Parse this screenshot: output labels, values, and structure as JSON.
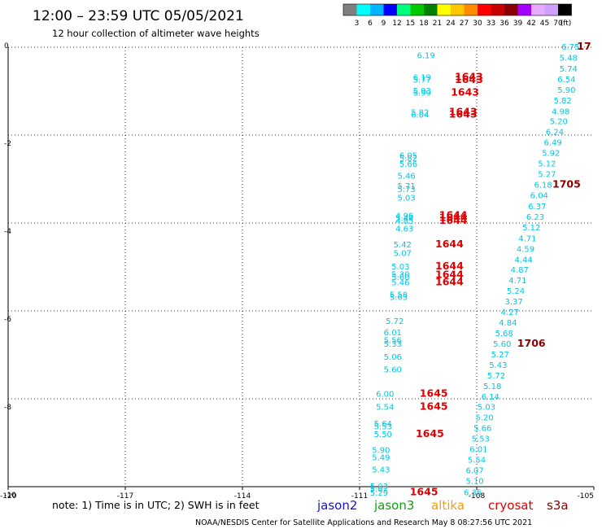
{
  "title": "12:00 – 23:59 UTC 05/05/2021",
  "subtitle": "12 hour collection of altimeter wave heights",
  "note": "note: 1) Time is in UTC; 2) SWH is in feet",
  "credit": "NOAA/NESDIS Center for Satellite Applications and Research   May  8 08:27:56 UTC 2021",
  "satellites": [
    {
      "name": "jason2",
      "color": "#1414d2"
    },
    {
      "name": "jason3",
      "color": "#14a014"
    },
    {
      "name": "altika",
      "color": "#ff9a00"
    },
    {
      "name": "cryosat",
      "color": "#e00000"
    },
    {
      "name": "s3a",
      "color": "#8b0000"
    }
  ],
  "chart_data": {
    "type": "scatter",
    "title": "12:00 – 23:59 UTC 05/05/2021",
    "subtitle": "12 hour collection of altimeter wave heights",
    "xlim": [
      -120,
      -105
    ],
    "ylim": [
      -10,
      0
    ],
    "x_ticks": [
      -120,
      -117,
      -114,
      -111,
      -108,
      -105
    ],
    "y_ticks": [
      0,
      -2,
      -4,
      -6,
      -8,
      -10
    ],
    "grid": true,
    "color_scale": {
      "unit": "(ft)",
      "labels": [
        "3",
        "6",
        "9",
        "12",
        "15",
        "18",
        "21",
        "24",
        "27",
        "30",
        "33",
        "36",
        "39",
        "42",
        "45",
        "70"
      ],
      "colors": [
        "#7f7f7f",
        "#00ffff",
        "#00b4ff",
        "#0000ff",
        "#00ff7f",
        "#00c800",
        "#008000",
        "#ffff00",
        "#ffc800",
        "#ff8c00",
        "#ff0000",
        "#c80000",
        "#8b0000",
        "#a000ff",
        "#e6aaff",
        "#d0a0ff",
        "#000000"
      ]
    },
    "swh_series": [
      {
        "name": "track-1",
        "color": "#00c8e6",
        "points": [
          {
            "x": -109.3,
            "y": -0.18,
            "v": "6.19"
          },
          {
            "x": -109.4,
            "y": -0.68,
            "v": "6.19"
          },
          {
            "x": -109.4,
            "y": -0.73,
            "v": "5.77"
          },
          {
            "x": -109.4,
            "y": -0.98,
            "v": "5.93"
          },
          {
            "x": -109.4,
            "y": -1.03,
            "v": "5.99"
          },
          {
            "x": -109.45,
            "y": -1.47,
            "v": "5.82"
          },
          {
            "x": -109.45,
            "y": -1.53,
            "v": "6.04"
          },
          {
            "x": -109.75,
            "y": -2.45,
            "v": "6.05"
          },
          {
            "x": -109.75,
            "y": -2.52,
            "v": "5.82"
          },
          {
            "x": -109.75,
            "y": -2.65,
            "v": "5.66"
          },
          {
            "x": -109.8,
            "y": -2.92,
            "v": "5.46"
          },
          {
            "x": -109.8,
            "y": -3.15,
            "v": "5.71"
          },
          {
            "x": -109.8,
            "y": -3.22,
            "v": "5.73"
          },
          {
            "x": -109.8,
            "y": -3.42,
            "v": "5.03"
          },
          {
            "x": -109.85,
            "y": -3.82,
            "v": "4.96"
          },
          {
            "x": -109.85,
            "y": -3.88,
            "v": "5.44"
          },
          {
            "x": -109.85,
            "y": -3.94,
            "v": "4.85"
          },
          {
            "x": -109.85,
            "y": -4.12,
            "v": "4.63"
          },
          {
            "x": -109.9,
            "y": -4.48,
            "v": "5.42"
          },
          {
            "x": -109.9,
            "y": -4.68,
            "v": "5.07"
          },
          {
            "x": -109.95,
            "y": -4.98,
            "v": "5.03"
          },
          {
            "x": -109.95,
            "y": -5.16,
            "v": "5.30"
          },
          {
            "x": -109.95,
            "y": -5.22,
            "v": "5.60"
          },
          {
            "x": -109.95,
            "y": -5.34,
            "v": "5.46"
          },
          {
            "x": -110.0,
            "y": -5.62,
            "v": "5.58"
          },
          {
            "x": -110.0,
            "y": -5.68,
            "v": "5.63"
          },
          {
            "x": -110.1,
            "y": -6.22,
            "v": "5.72"
          },
          {
            "x": -110.15,
            "y": -6.48,
            "v": "6.01"
          },
          {
            "x": -110.15,
            "y": -6.66,
            "v": "5.56"
          },
          {
            "x": -110.15,
            "y": -6.74,
            "v": "5.33"
          },
          {
            "x": -110.15,
            "y": -7.04,
            "v": "5.06"
          },
          {
            "x": -110.15,
            "y": -7.32,
            "v": "5.60"
          },
          {
            "x": -110.35,
            "y": -7.88,
            "v": "6.00"
          },
          {
            "x": -110.35,
            "y": -8.18,
            "v": "5.54"
          },
          {
            "x": -110.4,
            "y": -8.56,
            "v": "5.64"
          },
          {
            "x": -110.4,
            "y": -8.62,
            "v": "5.53"
          },
          {
            "x": -110.4,
            "y": -8.8,
            "v": "5.50"
          },
          {
            "x": -110.45,
            "y": -9.16,
            "v": "5.90"
          },
          {
            "x": -110.45,
            "y": -9.32,
            "v": "5.49"
          },
          {
            "x": -110.45,
            "y": -9.6,
            "v": "5.43"
          },
          {
            "x": -110.5,
            "y": -9.98,
            "v": "5.03"
          },
          {
            "x": -110.5,
            "y": -10.04,
            "v": "5.02"
          },
          {
            "x": -110.5,
            "y": -10.13,
            "v": "5.29"
          }
        ]
      },
      {
        "name": "track-2",
        "color": "#00c8e6",
        "points": [
          {
            "x": -105.6,
            "y": 0.02,
            "v": "6.75"
          },
          {
            "x": -105.65,
            "y": -0.23,
            "v": "5.48"
          },
          {
            "x": -105.65,
            "y": -0.48,
            "v": "5.74"
          },
          {
            "x": -105.7,
            "y": -0.72,
            "v": "6.54"
          },
          {
            "x": -105.7,
            "y": -0.96,
            "v": "5.90"
          },
          {
            "x": -105.8,
            "y": -1.2,
            "v": "5.82"
          },
          {
            "x": -105.85,
            "y": -1.45,
            "v": "4.98"
          },
          {
            "x": -105.9,
            "y": -1.68,
            "v": "5.20"
          },
          {
            "x": -106.0,
            "y": -1.92,
            "v": "6.24"
          },
          {
            "x": -106.05,
            "y": -2.16,
            "v": "6.49"
          },
          {
            "x": -106.1,
            "y": -2.4,
            "v": "5.92"
          },
          {
            "x": -106.2,
            "y": -2.64,
            "v": "5.12"
          },
          {
            "x": -106.2,
            "y": -2.88,
            "v": "5.27"
          },
          {
            "x": -106.3,
            "y": -3.12,
            "v": "6.18"
          },
          {
            "x": -106.4,
            "y": -3.36,
            "v": "6.04"
          },
          {
            "x": -106.45,
            "y": -3.61,
            "v": "6.37"
          },
          {
            "x": -106.5,
            "y": -3.85,
            "v": "6.23"
          },
          {
            "x": -106.6,
            "y": -4.09,
            "v": "5.12"
          },
          {
            "x": -106.7,
            "y": -4.34,
            "v": "4.71"
          },
          {
            "x": -106.75,
            "y": -4.58,
            "v": "4.59"
          },
          {
            "x": -106.8,
            "y": -4.82,
            "v": "4.44"
          },
          {
            "x": -106.9,
            "y": -5.06,
            "v": "4.87"
          },
          {
            "x": -106.95,
            "y": -5.3,
            "v": "4.71"
          },
          {
            "x": -107.0,
            "y": -5.54,
            "v": "5.24"
          },
          {
            "x": -107.05,
            "y": -5.78,
            "v": "3.37"
          },
          {
            "x": -107.15,
            "y": -6.02,
            "v": "4.27"
          },
          {
            "x": -107.2,
            "y": -6.26,
            "v": "4.84"
          },
          {
            "x": -107.3,
            "y": -6.5,
            "v": "5.68"
          },
          {
            "x": -107.35,
            "y": -6.74,
            "v": "5.60"
          },
          {
            "x": -107.4,
            "y": -6.98,
            "v": "5.27"
          },
          {
            "x": -107.45,
            "y": -7.22,
            "v": "5.43"
          },
          {
            "x": -107.5,
            "y": -7.46,
            "v": "5.72"
          },
          {
            "x": -107.6,
            "y": -7.7,
            "v": "5.18"
          },
          {
            "x": -107.65,
            "y": -7.94,
            "v": "6.14"
          },
          {
            "x": -107.75,
            "y": -8.18,
            "v": "5.03"
          },
          {
            "x": -107.8,
            "y": -8.42,
            "v": "5.20"
          },
          {
            "x": -107.85,
            "y": -8.66,
            "v": "5.66"
          },
          {
            "x": -107.9,
            "y": -8.9,
            "v": "5.53"
          },
          {
            "x": -107.95,
            "y": -9.14,
            "v": "6.01"
          },
          {
            "x": -108.0,
            "y": -9.38,
            "v": "5.54"
          },
          {
            "x": -108.05,
            "y": -9.62,
            "v": "6.07"
          },
          {
            "x": -108.05,
            "y": -9.86,
            "v": "5.10"
          },
          {
            "x": -108.1,
            "y": -10.12,
            "v": "6.35"
          }
        ]
      }
    ],
    "time_labels": [
      {
        "x": -108.2,
        "y": -0.68,
        "v": "1643",
        "color": "#e00000"
      },
      {
        "x": -108.2,
        "y": -0.74,
        "v": "1643",
        "color": "#e00000"
      },
      {
        "x": -108.3,
        "y": -1.03,
        "v": "1643",
        "color": "#e00000"
      },
      {
        "x": -108.35,
        "y": -1.47,
        "v": "1643",
        "color": "#e00000"
      },
      {
        "x": -108.35,
        "y": -1.53,
        "v": "1643",
        "color": "#e00000"
      },
      {
        "x": -108.6,
        "y": -3.82,
        "v": "1644",
        "color": "#e00000"
      },
      {
        "x": -108.6,
        "y": -3.88,
        "v": "1644",
        "color": "#e00000"
      },
      {
        "x": -108.6,
        "y": -3.94,
        "v": "1644",
        "color": "#e00000"
      },
      {
        "x": -108.7,
        "y": -4.48,
        "v": "1644",
        "color": "#e00000"
      },
      {
        "x": -108.7,
        "y": -4.98,
        "v": "1644",
        "color": "#e00000"
      },
      {
        "x": -108.7,
        "y": -5.18,
        "v": "1644",
        "color": "#e00000"
      },
      {
        "x": -108.7,
        "y": -5.34,
        "v": "1644",
        "color": "#e00000"
      },
      {
        "x": -109.1,
        "y": -7.88,
        "v": "1645",
        "color": "#e00000"
      },
      {
        "x": -109.1,
        "y": -8.18,
        "v": "1645",
        "color": "#e00000"
      },
      {
        "x": -109.2,
        "y": -8.8,
        "v": "1645",
        "color": "#e00000"
      },
      {
        "x": -109.35,
        "y": -10.12,
        "v": "1645",
        "color": "#e00000"
      },
      {
        "x": -105.25,
        "y": 0.02,
        "v": "17",
        "color": "#8b0000"
      },
      {
        "x": -105.7,
        "y": -3.12,
        "v": "1705",
        "color": "#8b0000"
      },
      {
        "x": -106.6,
        "y": -6.74,
        "v": "1706",
        "color": "#8b0000"
      }
    ]
  }
}
